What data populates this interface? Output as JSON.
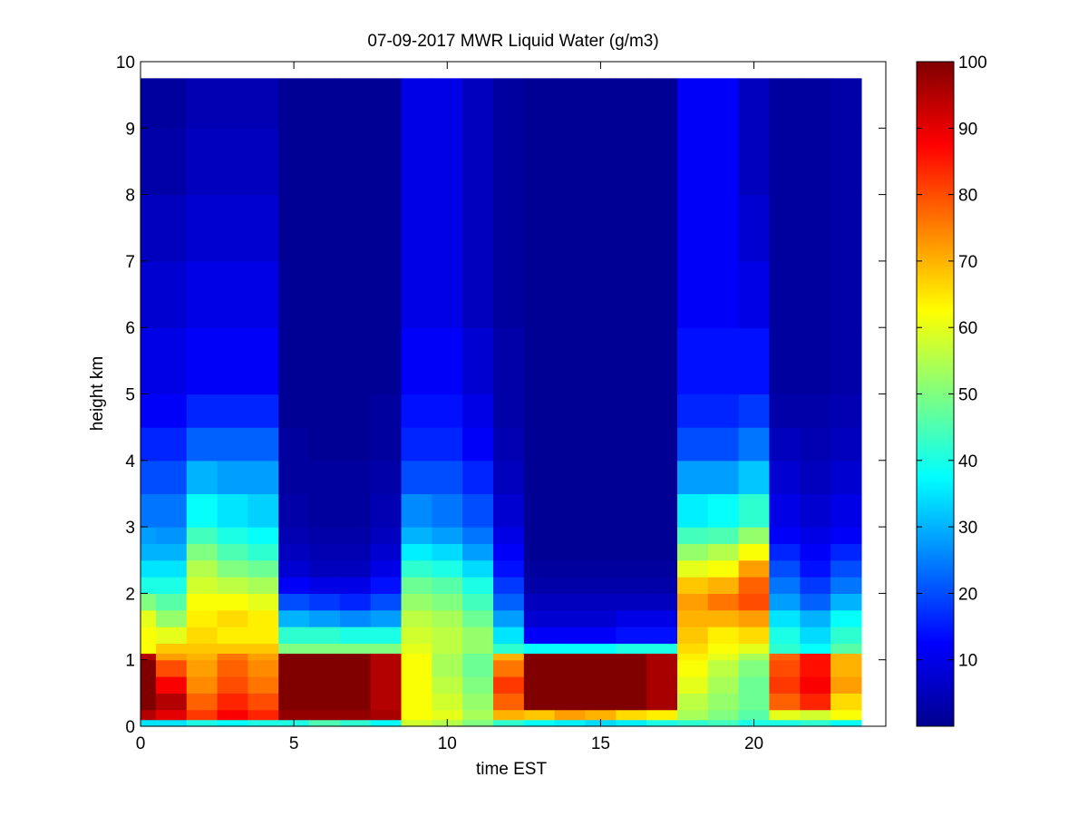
{
  "chart_data": {
    "type": "heatmap",
    "title": "07-09-2017 MWR Liquid Water (g/m3)",
    "xlabel": "time EST",
    "ylabel": "height km",
    "xlim": [
      0,
      24.3
    ],
    "ylim": [
      0,
      10
    ],
    "x_ticks": [
      0,
      5,
      10,
      15,
      20
    ],
    "y_ticks": [
      0,
      1,
      2,
      3,
      4,
      5,
      6,
      7,
      8,
      9,
      10
    ],
    "colorbar": {
      "min": 0,
      "max": 100,
      "ticks": [
        10,
        20,
        30,
        40,
        50,
        60,
        70,
        80,
        90,
        100
      ],
      "colormap": "jet"
    },
    "x_bin_edges": [
      0,
      0.5,
      1.5,
      2.5,
      3.5,
      4.5,
      5.5,
      6.5,
      7.5,
      8.5,
      9.5,
      10.5,
      11.5,
      12.5,
      13.5,
      14.5,
      15.5,
      16.5,
      17.5,
      18.5,
      19.5,
      20.5,
      21.5,
      22.5,
      23.5
    ],
    "height_levels_km": [
      0,
      0.1,
      0.25,
      0.5,
      0.75,
      1.0,
      1.1,
      1.25,
      1.5,
      1.75,
      2.0,
      2.25,
      2.5,
      2.75,
      3.0,
      3.5,
      4.0,
      4.5,
      5.0,
      6.0,
      7.0,
      8.0,
      9.0,
      9.75
    ],
    "values": [
      [
        35,
        95,
        100,
        100,
        100,
        95,
        62,
        62,
        60,
        50,
        40,
        35,
        30,
        28,
        24,
        20,
        16,
        12,
        10,
        8,
        6,
        4,
        3
      ],
      [
        35,
        90,
        95,
        88,
        80,
        72,
        68,
        60,
        52,
        46,
        40,
        35,
        30,
        27,
        24,
        20,
        16,
        12,
        10,
        8,
        6,
        4,
        3
      ],
      [
        40,
        82,
        78,
        74,
        72,
        70,
        68,
        66,
        64,
        62,
        58,
        55,
        50,
        44,
        38,
        30,
        22,
        16,
        12,
        10,
        8,
        6,
        5
      ],
      [
        38,
        88,
        84,
        80,
        78,
        76,
        68,
        64,
        66,
        62,
        56,
        50,
        45,
        40,
        35,
        28,
        22,
        16,
        12,
        10,
        8,
        6,
        5
      ],
      [
        40,
        84,
        80,
        76,
        74,
        72,
        68,
        64,
        64,
        60,
        54,
        48,
        42,
        38,
        33,
        28,
        22,
        16,
        12,
        10,
        8,
        6,
        5
      ],
      [
        40,
        98,
        100,
        100,
        100,
        100,
        50,
        42,
        30,
        20,
        12,
        8,
        6,
        5,
        4,
        3,
        3,
        2,
        2,
        2,
        2,
        2,
        2
      ],
      [
        45,
        98,
        100,
        100,
        100,
        100,
        50,
        42,
        28,
        18,
        10,
        6,
        5,
        4,
        3,
        3,
        2,
        2,
        2,
        2,
        2,
        2,
        2
      ],
      [
        42,
        98,
        100,
        100,
        100,
        100,
        50,
        40,
        26,
        16,
        10,
        6,
        5,
        4,
        3,
        3,
        2,
        2,
        2,
        2,
        2,
        2,
        2
      ],
      [
        38,
        96,
        95,
        95,
        95,
        95,
        50,
        40,
        28,
        20,
        14,
        10,
        8,
        6,
        5,
        4,
        3,
        3,
        2,
        2,
        2,
        2,
        2
      ],
      [
        58,
        62,
        62,
        62,
        62,
        62,
        60,
        58,
        56,
        52,
        48,
        42,
        36,
        30,
        26,
        20,
        16,
        14,
        12,
        10,
        10,
        10,
        10
      ],
      [
        55,
        60,
        58,
        56,
        54,
        54,
        56,
        56,
        54,
        50,
        46,
        40,
        34,
        28,
        24,
        20,
        16,
        14,
        12,
        10,
        10,
        10,
        10
      ],
      [
        50,
        54,
        52,
        50,
        48,
        48,
        52,
        52,
        48,
        44,
        40,
        34,
        28,
        24,
        20,
        16,
        12,
        10,
        8,
        6,
        6,
        6,
        6
      ],
      [
        42,
        70,
        78,
        82,
        76,
        70,
        42,
        35,
        28,
        22,
        18,
        14,
        12,
        10,
        8,
        6,
        5,
        4,
        4,
        3,
        3,
        3,
        3
      ],
      [
        38,
        68,
        100,
        100,
        100,
        100,
        38,
        12,
        8,
        6,
        4,
        3,
        2,
        2,
        2,
        2,
        2,
        2,
        2,
        2,
        2,
        2,
        2
      ],
      [
        36,
        72,
        100,
        100,
        100,
        100,
        38,
        12,
        8,
        6,
        4,
        3,
        2,
        2,
        2,
        2,
        2,
        2,
        2,
        2,
        2,
        2,
        2
      ],
      [
        34,
        70,
        100,
        100,
        100,
        100,
        38,
        12,
        8,
        6,
        4,
        3,
        2,
        2,
        2,
        2,
        2,
        2,
        2,
        2,
        2,
        2,
        2
      ],
      [
        36,
        66,
        100,
        100,
        100,
        100,
        40,
        14,
        10,
        6,
        4,
        3,
        2,
        2,
        2,
        2,
        2,
        2,
        2,
        2,
        2,
        2,
        2
      ],
      [
        40,
        64,
        96,
        96,
        96,
        96,
        40,
        14,
        10,
        6,
        4,
        3,
        2,
        2,
        2,
        2,
        2,
        2,
        2,
        2,
        2,
        2,
        2
      ],
      [
        42,
        54,
        56,
        60,
        62,
        64,
        66,
        68,
        70,
        72,
        68,
        60,
        52,
        44,
        36,
        28,
        20,
        16,
        14,
        12,
        12,
        12,
        12
      ],
      [
        44,
        50,
        52,
        54,
        56,
        60,
        62,
        64,
        70,
        76,
        70,
        62,
        55,
        45,
        38,
        28,
        20,
        16,
        14,
        12,
        12,
        12,
        12
      ],
      [
        40,
        46,
        48,
        48,
        50,
        54,
        60,
        66,
        72,
        80,
        78,
        72,
        62,
        52,
        42,
        32,
        24,
        18,
        14,
        10,
        8,
        6,
        6
      ],
      [
        40,
        60,
        78,
        82,
        80,
        78,
        42,
        40,
        35,
        28,
        24,
        20,
        16,
        12,
        10,
        8,
        6,
        4,
        3,
        3,
        3,
        3,
        3
      ],
      [
        42,
        58,
        84,
        88,
        86,
        86,
        38,
        34,
        30,
        22,
        18,
        14,
        12,
        10,
        8,
        6,
        5,
        4,
        3,
        3,
        3,
        3,
        3
      ],
      [
        38,
        62,
        66,
        72,
        70,
        70,
        46,
        42,
        38,
        30,
        24,
        20,
        16,
        12,
        10,
        8,
        6,
        5,
        4,
        4,
        4,
        4,
        4
      ]
    ]
  }
}
